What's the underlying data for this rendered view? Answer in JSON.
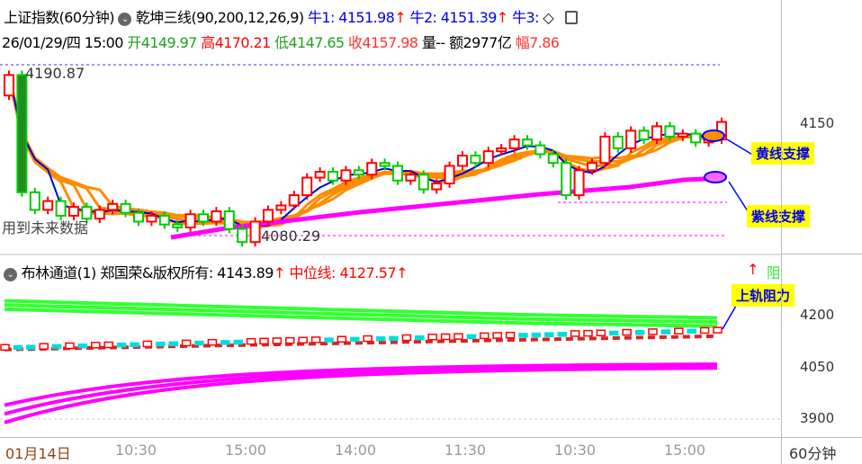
{
  "header": {
    "symbol": "上证指数(60分钟)",
    "indicator": "乾坤三线(90,200,12,26,9)",
    "niu1": "牛1: 4151.98",
    "niu2": "牛2: 4151.39",
    "niu3": "牛3:",
    "date": "26/01/29/四 15:00",
    "open": "开4149.97",
    "high": "高4170.21",
    "low": "低4147.65",
    "close": "收4157.98",
    "volume": "量--",
    "amount": "额2977亿",
    "range": "幅7.86"
  },
  "main": {
    "high_label": "4190.87",
    "low_label": "4080.29",
    "future_note": "用到未来数据",
    "axis_label": "4150",
    "annotations": [
      "黄线支撑",
      "紫线支撑"
    ]
  },
  "sub": {
    "title": "布林通道(1) 郑国荣&版权所有: 4143.89",
    "mid": "中位线: 4127.57",
    "axis_labels": [
      "4200",
      "4050",
      "3900"
    ],
    "annotation": "上轨阻力",
    "corner": "阻"
  },
  "xaxis": {
    "labels": [
      "01月14日",
      "10:30",
      "15:00",
      "14:00",
      "11:30",
      "10:30",
      "15:00"
    ],
    "period": "60分钟"
  },
  "colors": {
    "up": "#ff0000",
    "down": "#00cc00",
    "ma_orange": "#ff8c00",
    "ma_blue": "#0000dd",
    "magenta": "#ff00ff",
    "green_band": "#33ff33"
  },
  "chart_data": {
    "type": "candlestick",
    "closes": [
      4190,
      4110,
      4098,
      4104,
      4094,
      4100,
      4092,
      4098,
      4102,
      4096,
      4090,
      4094,
      4088,
      4086,
      4095,
      4090,
      4097,
      4085,
      4076,
      4090,
      4098,
      4101,
      4108,
      4120,
      4124,
      4118,
      4125,
      4122,
      4130,
      4128,
      4118,
      4122,
      4112,
      4116,
      4128,
      4135,
      4130,
      4138,
      4140,
      4146,
      4142,
      4136,
      4130,
      4108,
      4125,
      4130,
      4148,
      4140,
      4152,
      4146,
      4155,
      4148,
      4150,
      4144,
      4146,
      4158
    ]
  }
}
